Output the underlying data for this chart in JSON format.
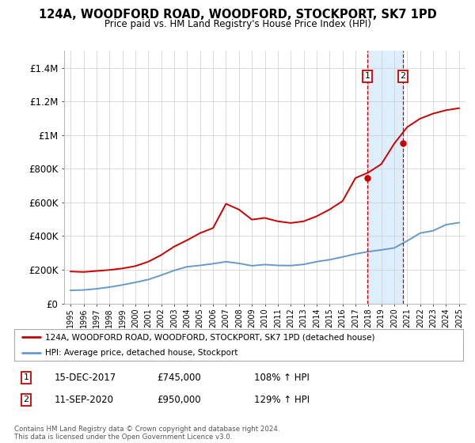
{
  "title": "124A, WOODFORD ROAD, WOODFORD, STOCKPORT, SK7 1PD",
  "subtitle": "Price paid vs. HM Land Registry's House Price Index (HPI)",
  "legend_line1": "124A, WOODFORD ROAD, WOODFORD, STOCKPORT, SK7 1PD (detached house)",
  "legend_line2": "HPI: Average price, detached house, Stockport",
  "footer": "Contains HM Land Registry data © Crown copyright and database right 2024.\nThis data is licensed under the Open Government Licence v3.0.",
  "sale1_date": "15-DEC-2017",
  "sale1_price": 745000,
  "sale1_pct": "108%",
  "sale2_date": "11-SEP-2020",
  "sale2_price": 950000,
  "sale2_pct": "129%",
  "red_color": "#cc0000",
  "blue_color": "#6699cc",
  "shade_color": "#ddeeff",
  "background_color": "#ffffff",
  "grid_color": "#cccccc",
  "ylim": [
    0,
    1500000
  ],
  "yticks": [
    0,
    200000,
    400000,
    600000,
    800000,
    1000000,
    1200000,
    1400000
  ],
  "ylabel_format": [
    "£0",
    "£200K",
    "£400K",
    "£600K",
    "£800K",
    "£1M",
    "£1.2M",
    "£1.4M"
  ],
  "hpi_years": [
    1995,
    1996,
    1997,
    1998,
    1999,
    2000,
    2001,
    2002,
    2003,
    2004,
    2005,
    2006,
    2007,
    2008,
    2009,
    2010,
    2011,
    2012,
    2013,
    2014,
    2015,
    2016,
    2017,
    2018,
    2019,
    2020,
    2021,
    2022,
    2023,
    2024,
    2025
  ],
  "hpi_values": [
    78000,
    80000,
    87000,
    97000,
    110000,
    125000,
    142000,
    168000,
    196000,
    218000,
    226000,
    236000,
    248000,
    238000,
    224000,
    231000,
    226000,
    225000,
    232000,
    248000,
    260000,
    276000,
    294000,
    308000,
    318000,
    330000,
    372000,
    418000,
    432000,
    468000,
    480000
  ],
  "red_years": [
    1995,
    1996,
    1997,
    1998,
    1999,
    2000,
    2001,
    2002,
    2003,
    2004,
    2005,
    2006,
    2007,
    2008,
    2009,
    2010,
    2011,
    2012,
    2013,
    2014,
    2015,
    2016,
    2017,
    2018,
    2019,
    2020,
    2021,
    2022,
    2023,
    2024,
    2025
  ],
  "red_values": [
    190000,
    187000,
    193000,
    199000,
    208000,
    222000,
    248000,
    288000,
    338000,
    376000,
    418000,
    448000,
    592000,
    558000,
    498000,
    508000,
    488000,
    478000,
    488000,
    518000,
    558000,
    608000,
    745000,
    778000,
    828000,
    950000,
    1048000,
    1098000,
    1128000,
    1148000,
    1160000
  ],
  "sale1_x": 2017.92,
  "sale2_x": 2020.67
}
